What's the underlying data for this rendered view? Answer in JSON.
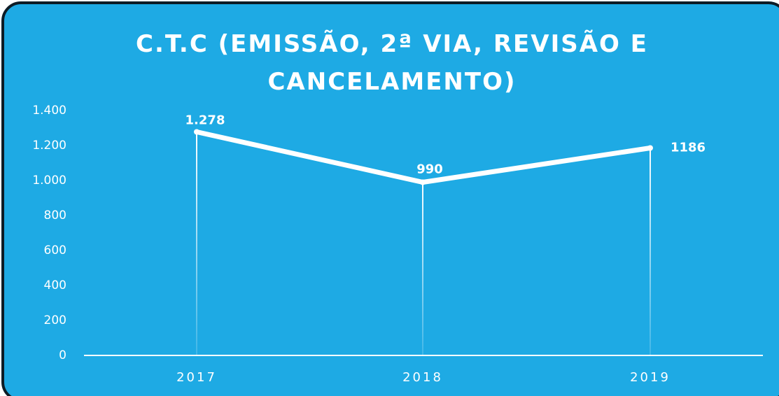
{
  "chart_data": {
    "type": "line",
    "title": "C.T.C (EMISSÃO, 2ª VIA, REVISÃO E CANCELAMENTO)",
    "categories": [
      "2017",
      "2018",
      "2019"
    ],
    "series": [
      {
        "name": "C.T.C",
        "color": "#ffffff",
        "values": [
          1278,
          990,
          1186
        ],
        "value_labels": [
          "1.278",
          "990",
          "1186"
        ]
      }
    ],
    "ylim": [
      0,
      1400
    ],
    "yticks": [
      0,
      200,
      400,
      600,
      800,
      {
        "value": 1000,
        "label": "1.000"
      },
      {
        "value": 1200,
        "label": "1.200"
      },
      {
        "value": 1400,
        "label": "1.400"
      }
    ],
    "drop_lines": true
  }
}
